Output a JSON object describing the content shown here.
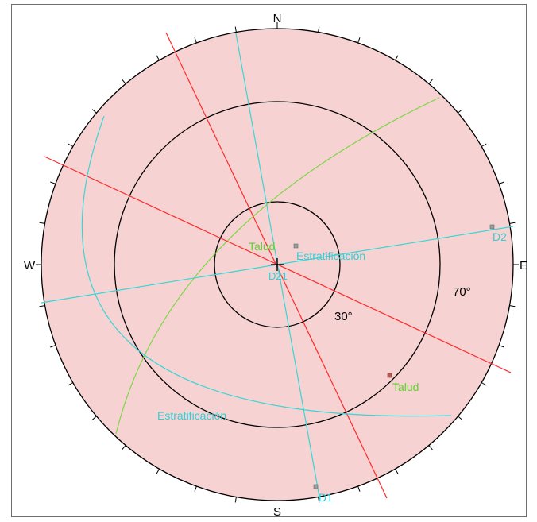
{
  "stereonet": {
    "compass": {
      "north": "N",
      "south": "S",
      "east": "E",
      "west": "W"
    },
    "ring_labels": {
      "inner": "30°",
      "middle": "70°"
    },
    "colors": {
      "fill": "#f7d2d2",
      "ring": "#000000",
      "talud": "#ff2a2a",
      "estratificacion": "#37d6d6",
      "friction": "#7ed64a",
      "label_green": "#5fd22f",
      "label_cyan": "#31cfd6"
    },
    "labels": {
      "talud_center": "Talud",
      "talud_pole": "Talud",
      "estrat_center": "Estratificación",
      "estrat_arc": "Estratificación",
      "d1": "D1",
      "d2": "D2",
      "d21": "D21"
    }
  }
}
